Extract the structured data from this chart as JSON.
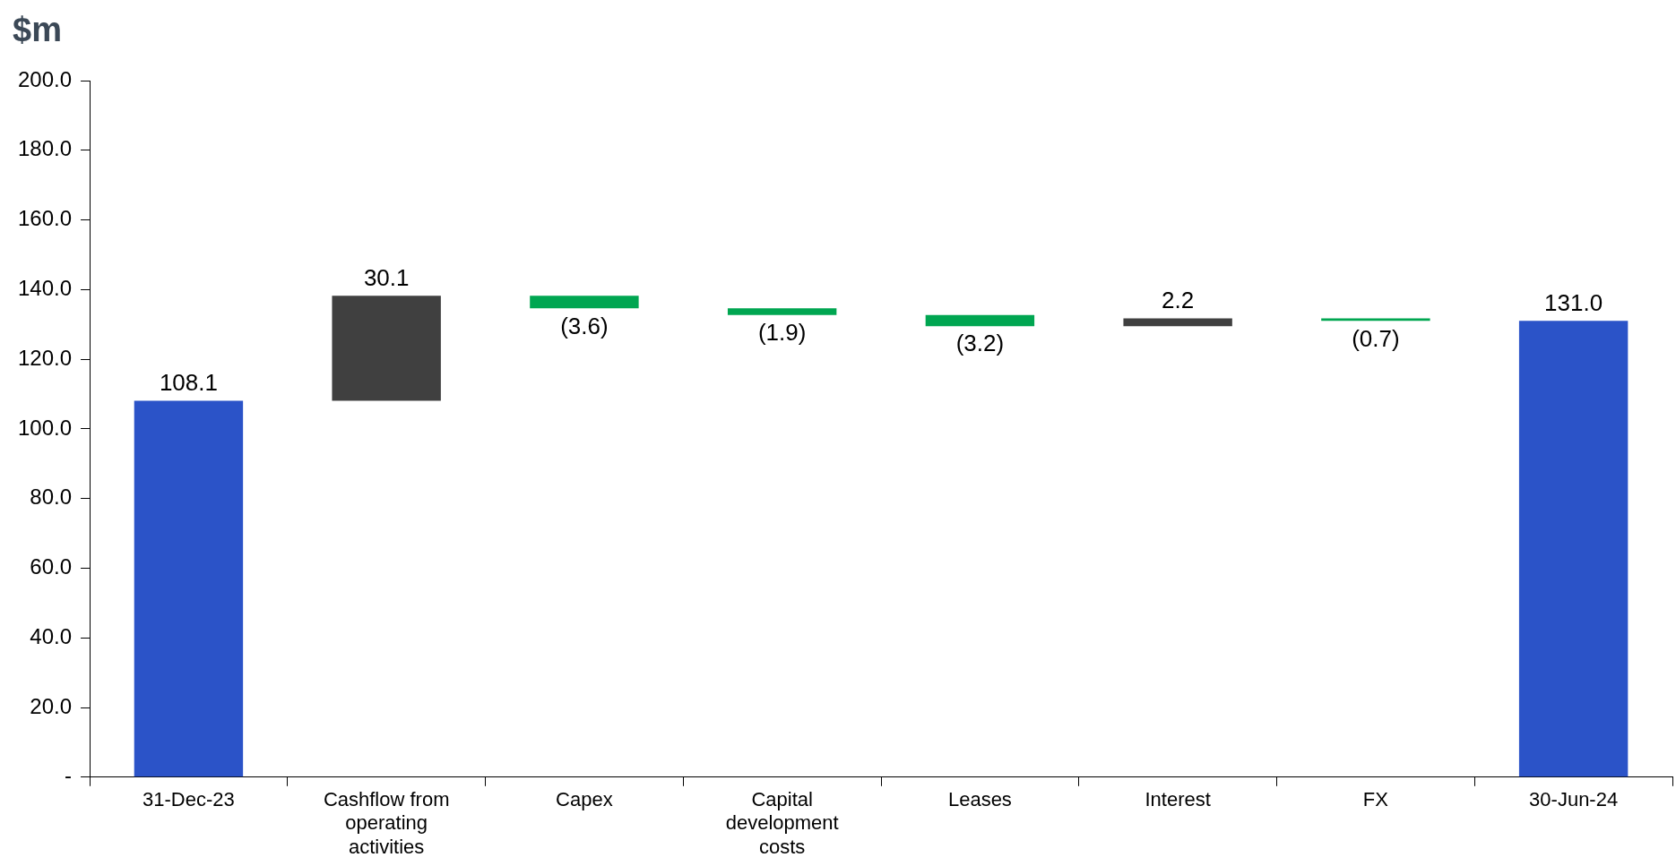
{
  "chart_data": {
    "type": "bar",
    "ylabel": "$m",
    "categories": [
      "31-Dec-23",
      "Cashflow from operating activities",
      "Capex",
      "Capital development costs",
      "Leases",
      "Interest",
      "FX",
      "30-Jun-24"
    ],
    "values": [
      108.1,
      30.1,
      -3.6,
      -1.9,
      -3.2,
      2.2,
      -0.7,
      131.0
    ],
    "base": [
      0,
      108.1,
      138.2,
      134.6,
      132.7,
      129.5,
      131.7,
      0
    ],
    "colors": [
      "#2b53c8",
      "#404040",
      "#00a651",
      "#00a651",
      "#00a651",
      "#404040",
      "#00a651",
      "#2b53c8"
    ],
    "value_labels": [
      "108.1",
      "30.1",
      "(3.6)",
      "(1.9)",
      "(3.2)",
      "2.2",
      "(0.7)",
      "131.0"
    ],
    "ylim": [
      0,
      200
    ],
    "yticks": [
      {
        "value": 0,
        "label": "-"
      },
      {
        "value": 20,
        "label": "20.0"
      },
      {
        "value": 40,
        "label": "40.0"
      },
      {
        "value": 60,
        "label": "60.0"
      },
      {
        "value": 80,
        "label": "80.0"
      },
      {
        "value": 100,
        "label": "100.0"
      },
      {
        "value": 120,
        "label": "120.0"
      },
      {
        "value": 140,
        "label": "140.0"
      },
      {
        "value": 160,
        "label": "160.0"
      },
      {
        "value": 180,
        "label": "180.0"
      },
      {
        "value": 200,
        "label": "200.0"
      }
    ],
    "grid": false,
    "legend": false
  }
}
